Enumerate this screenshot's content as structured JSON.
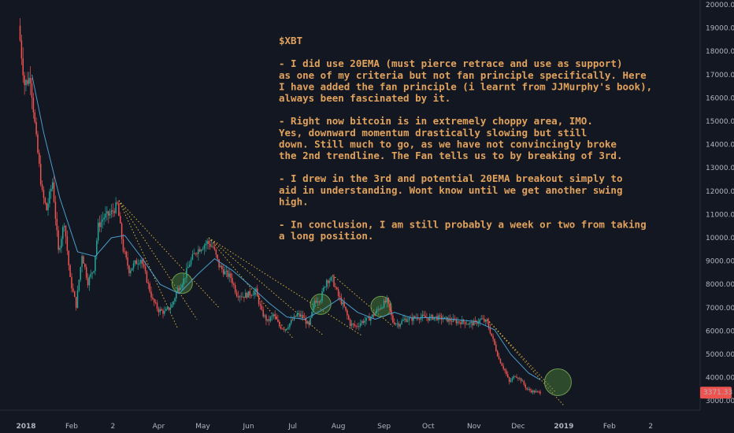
{
  "chart_data": {
    "type": "candlestick",
    "title": "",
    "xlabel": "",
    "ylabel": "",
    "ylim": [
      2700,
      20000
    ],
    "grid": false,
    "x_tick_labels": [
      {
        "label": "2018",
        "date": "2018-01-01"
      },
      {
        "label": "Feb",
        "date": "2018-02-01"
      },
      {
        "label": "2",
        "date": "2018-03-01"
      },
      {
        "label": "Apr",
        "date": "2018-04-01"
      },
      {
        "label": "May",
        "date": "2018-05-01"
      },
      {
        "label": "Jun",
        "date": "2018-06-01"
      },
      {
        "label": "Jul",
        "date": "2018-07-01"
      },
      {
        "label": "Aug",
        "date": "2018-08-01"
      },
      {
        "label": "Sep",
        "date": "2018-09-01"
      },
      {
        "label": "Oct",
        "date": "2018-10-01"
      },
      {
        "label": "Nov",
        "date": "2018-11-01"
      },
      {
        "label": "Dec",
        "date": "2018-12-01"
      },
      {
        "label": "2019",
        "date": "2019-01-01"
      },
      {
        "label": "Feb",
        "date": "2019-02-01"
      },
      {
        "label": "2",
        "date": "2019-03-01"
      }
    ],
    "y_tick_labels": [
      "3000.00",
      "4000.00",
      "5000.00",
      "6000.00",
      "7000.00",
      "8000.00",
      "9000.00",
      "10000.00",
      "11000.00",
      "12000.00",
      "13000.00",
      "14000.00",
      "15000.00",
      "16000.00",
      "17000.00",
      "18000.00",
      "19000.00",
      "20000.00"
    ],
    "y_tick_values": [
      3000,
      4000,
      5000,
      6000,
      7000,
      8000,
      9000,
      10000,
      11000,
      12000,
      13000,
      14000,
      15000,
      16000,
      17000,
      18000,
      19000,
      20000
    ],
    "last_price_label": "3371.33",
    "last_price": 3371.33,
    "price_path": [
      [
        "2017-12-28",
        19100
      ],
      [
        "2018-01-01",
        16600
      ],
      [
        "2018-01-05",
        16900
      ],
      [
        "2018-01-09",
        14200
      ],
      [
        "2018-01-13",
        11900
      ],
      [
        "2018-01-16",
        11200
      ],
      [
        "2018-01-20",
        12400
      ],
      [
        "2018-01-24",
        9400
      ],
      [
        "2018-01-28",
        10700
      ],
      [
        "2018-02-01",
        8200
      ],
      [
        "2018-02-05",
        7100
      ],
      [
        "2018-02-09",
        9300
      ],
      [
        "2018-02-13",
        8100
      ],
      [
        "2018-02-17",
        8700
      ],
      [
        "2018-02-20",
        10500
      ],
      [
        "2018-02-24",
        10900
      ],
      [
        "2018-02-28",
        11000
      ],
      [
        "2018-03-05",
        11400
      ],
      [
        "2018-03-09",
        9500
      ],
      [
        "2018-03-13",
        8600
      ],
      [
        "2018-03-17",
        8900
      ],
      [
        "2018-03-21",
        9100
      ],
      [
        "2018-03-25",
        8200
      ],
      [
        "2018-03-29",
        7300
      ],
      [
        "2018-04-02",
        6900
      ],
      [
        "2018-04-06",
        6800
      ],
      [
        "2018-04-11",
        7100
      ],
      [
        "2018-04-15",
        7800
      ],
      [
        "2018-04-19",
        8200
      ],
      [
        "2018-04-23",
        8900
      ],
      [
        "2018-04-27",
        9400
      ],
      [
        "2018-05-01",
        9600
      ],
      [
        "2018-05-05",
        9800
      ],
      [
        "2018-05-09",
        9600
      ],
      [
        "2018-05-13",
        8800
      ],
      [
        "2018-05-17",
        8500
      ],
      [
        "2018-05-21",
        8300
      ],
      [
        "2018-05-25",
        7600
      ],
      [
        "2018-05-29",
        7500
      ],
      [
        "2018-06-03",
        7600
      ],
      [
        "2018-06-07",
        7700
      ],
      [
        "2018-06-11",
        6800
      ],
      [
        "2018-06-15",
        6400
      ],
      [
        "2018-06-19",
        6700
      ],
      [
        "2018-06-23",
        6200
      ],
      [
        "2018-06-27",
        6100
      ],
      [
        "2018-07-01",
        6400
      ],
      [
        "2018-07-05",
        6700
      ],
      [
        "2018-07-09",
        6600
      ],
      [
        "2018-07-13",
        6200
      ],
      [
        "2018-07-17",
        7300
      ],
      [
        "2018-07-21",
        7400
      ],
      [
        "2018-07-25",
        8200
      ],
      [
        "2018-07-29",
        8200
      ],
      [
        "2018-08-02",
        7500
      ],
      [
        "2018-08-06",
        7000
      ],
      [
        "2018-08-10",
        6300
      ],
      [
        "2018-08-14",
        6200
      ],
      [
        "2018-08-18",
        6400
      ],
      [
        "2018-08-22",
        6500
      ],
      [
        "2018-08-26",
        6700
      ],
      [
        "2018-08-30",
        7000
      ],
      [
        "2018-09-04",
        7300
      ],
      [
        "2018-09-08",
        6400
      ],
      [
        "2018-09-12",
        6300
      ],
      [
        "2018-09-16",
        6500
      ],
      [
        "2018-09-20",
        6500
      ],
      [
        "2018-09-24",
        6600
      ],
      [
        "2018-09-28",
        6600
      ],
      [
        "2018-10-02",
        6550
      ],
      [
        "2018-10-06",
        6600
      ],
      [
        "2018-10-10",
        6550
      ],
      [
        "2018-10-14",
        6500
      ],
      [
        "2018-10-18",
        6450
      ],
      [
        "2018-10-22",
        6400
      ],
      [
        "2018-10-26",
        6400
      ],
      [
        "2018-10-30",
        6300
      ],
      [
        "2018-11-03",
        6350
      ],
      [
        "2018-11-07",
        6500
      ],
      [
        "2018-11-11",
        6350
      ],
      [
        "2018-11-15",
        5600
      ],
      [
        "2018-11-19",
        4800
      ],
      [
        "2018-11-23",
        4300
      ],
      [
        "2018-11-26",
        3800
      ],
      [
        "2018-11-30",
        4100
      ],
      [
        "2018-12-04",
        3900
      ],
      [
        "2018-12-08",
        3500
      ],
      [
        "2018-12-12",
        3400
      ],
      [
        "2018-12-16",
        3371
      ]
    ],
    "ema_20_path": [
      [
        "2018-01-05",
        17000
      ],
      [
        "2018-01-13",
        14500
      ],
      [
        "2018-01-24",
        11700
      ],
      [
        "2018-02-05",
        9400
      ],
      [
        "2018-02-17",
        9200
      ],
      [
        "2018-02-28",
        10000
      ],
      [
        "2018-03-09",
        10100
      ],
      [
        "2018-03-21",
        9100
      ],
      [
        "2018-04-02",
        8000
      ],
      [
        "2018-04-15",
        7600
      ],
      [
        "2018-04-27",
        8400
      ],
      [
        "2018-05-09",
        9100
      ],
      [
        "2018-05-21",
        8600
      ],
      [
        "2018-06-03",
        7900
      ],
      [
        "2018-06-15",
        7200
      ],
      [
        "2018-06-27",
        6600
      ],
      [
        "2018-07-09",
        6500
      ],
      [
        "2018-07-21",
        6900
      ],
      [
        "2018-08-02",
        7400
      ],
      [
        "2018-08-14",
        6800
      ],
      [
        "2018-08-26",
        6500
      ],
      [
        "2018-09-08",
        6800
      ],
      [
        "2018-09-20",
        6550
      ],
      [
        "2018-10-02",
        6580
      ],
      [
        "2018-10-18",
        6500
      ],
      [
        "2018-11-03",
        6400
      ],
      [
        "2018-11-15",
        6050
      ],
      [
        "2018-11-26",
        5000
      ],
      [
        "2018-12-08",
        4200
      ],
      [
        "2018-12-16",
        3900
      ]
    ],
    "fan_lines": [
      {
        "from": [
          "2018-03-05",
          11600
        ],
        "to": [
          "2018-04-14",
          6100
        ]
      },
      {
        "from": [
          "2018-03-05",
          11600
        ],
        "to": [
          "2018-04-27",
          6500
        ]
      },
      {
        "from": [
          "2018-03-05",
          11600
        ],
        "to": [
          "2018-05-12",
          7000
        ]
      },
      {
        "from": [
          "2018-05-05",
          10000
        ],
        "to": [
          "2018-07-01",
          5700
        ]
      },
      {
        "from": [
          "2018-05-05",
          10000
        ],
        "to": [
          "2018-07-22",
          5800
        ]
      },
      {
        "from": [
          "2018-05-05",
          10000
        ],
        "to": [
          "2018-08-17",
          5800
        ]
      },
      {
        "from": [
          "2018-07-28",
          8400
        ],
        "to": [
          "2018-09-07",
          6200
        ]
      },
      {
        "from": [
          "2018-11-10",
          6500
        ],
        "to": [
          "2018-12-26",
          3400
        ]
      },
      {
        "from": [
          "2018-11-10",
          6500
        ],
        "to": [
          "2019-01-01",
          2800
        ]
      }
    ],
    "highlight_circles": [
      {
        "date": "2018-04-17",
        "price": 8050
      },
      {
        "date": "2018-07-20",
        "price": 7150
      },
      {
        "date": "2018-08-30",
        "price": 7050
      },
      {
        "date": "2018-12-28",
        "price": 3800
      }
    ],
    "annotation_lines": [
      "$XBT",
      "",
      "- I did use 20EMA (must pierce retrace and use as support)",
      "as one of my criteria but not fan principle specifically. Here",
      "I have added the fan principle (i learnt from JJMurphy's book),",
      "always been fascinated by it.",
      "",
      "- Right now bitcoin is in extremely choppy area, IMO.",
      "Yes, downward momentum drastically slowing but still",
      "down. Still much to go, as we have not convincingly broke",
      "the 2nd trendline. The Fan tells us to by breaking of 3rd.",
      "",
      "- I drew in the 3rd and potential 20EMA breakout simply to",
      "aid in understanding. Wont know until we get another swing",
      "high.",
      "",
      "- In conclusion, I am still probably a week or two from taking",
      "a long position."
    ],
    "colors": {
      "background": "#131722",
      "up": "#26a69a",
      "down": "#ef5350",
      "ema": "#4a9cc9",
      "fan": "#d7b13a",
      "annotation": "#e0a25c",
      "axis_text": "#b2b5be",
      "price_tag": "#ef5350",
      "circle_fill": "#4f8a3c",
      "circle_stroke": "#6c9a4f"
    }
  }
}
